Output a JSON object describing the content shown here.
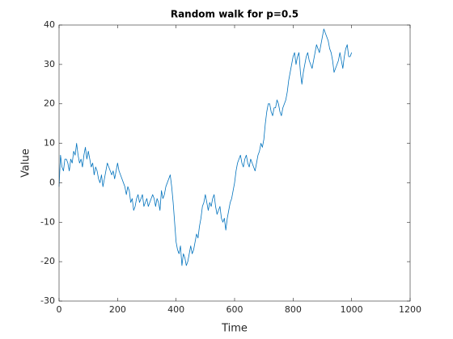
{
  "chart_data": {
    "type": "line",
    "title": "Random walk for p=0.5",
    "x_label": "Time",
    "y_label": "Value",
    "xlim": [
      0,
      1200
    ],
    "ylim": [
      -30,
      40
    ],
    "xticks": [
      0,
      200,
      400,
      600,
      800,
      1000,
      1200
    ],
    "yticks": [
      -30,
      -20,
      -10,
      0,
      10,
      20,
      30,
      40
    ],
    "grid": false,
    "series": [
      {
        "color": "#0072bd",
        "x": [
          0,
          5,
          10,
          15,
          20,
          25,
          30,
          35,
          40,
          45,
          50,
          55,
          60,
          65,
          70,
          75,
          80,
          85,
          90,
          95,
          100,
          105,
          110,
          115,
          120,
          125,
          130,
          135,
          140,
          145,
          150,
          155,
          160,
          165,
          170,
          175,
          180,
          185,
          190,
          195,
          200,
          205,
          210,
          215,
          220,
          225,
          230,
          235,
          240,
          245,
          250,
          255,
          260,
          265,
          270,
          275,
          280,
          285,
          290,
          295,
          300,
          305,
          310,
          315,
          320,
          325,
          330,
          335,
          340,
          345,
          350,
          355,
          360,
          365,
          370,
          375,
          380,
          385,
          390,
          395,
          400,
          405,
          410,
          415,
          420,
          425,
          430,
          435,
          440,
          445,
          450,
          455,
          460,
          465,
          470,
          475,
          480,
          485,
          490,
          495,
          500,
          505,
          510,
          515,
          520,
          525,
          530,
          535,
          540,
          545,
          550,
          555,
          560,
          565,
          570,
          575,
          580,
          585,
          590,
          595,
          600,
          605,
          610,
          615,
          620,
          625,
          630,
          635,
          640,
          645,
          650,
          655,
          660,
          665,
          670,
          675,
          680,
          685,
          690,
          695,
          700,
          705,
          710,
          715,
          720,
          725,
          730,
          735,
          740,
          745,
          750,
          755,
          760,
          765,
          770,
          775,
          780,
          785,
          790,
          795,
          800,
          805,
          810,
          815,
          820,
          825,
          830,
          835,
          840,
          845,
          850,
          855,
          860,
          865,
          870,
          875,
          880,
          885,
          890,
          895,
          900,
          905,
          910,
          915,
          920,
          925,
          930,
          935,
          940,
          945,
          950,
          955,
          960,
          965,
          970,
          975,
          980,
          985,
          990,
          995,
          1000
        ],
        "values": [
          -1,
          7,
          4,
          3,
          6,
          6,
          5,
          3,
          6,
          5,
          8,
          7,
          10,
          7,
          5,
          6,
          4,
          7,
          9,
          6,
          8,
          6,
          4,
          5,
          2,
          4,
          3,
          1,
          0,
          2,
          -1,
          1,
          3,
          5,
          4,
          3,
          2,
          3,
          1,
          3,
          5,
          3,
          2,
          1,
          0,
          -1,
          -3,
          -1,
          -2,
          -5,
          -4,
          -7,
          -6,
          -4,
          -3,
          -5,
          -4,
          -3,
          -6,
          -5,
          -4,
          -6,
          -5,
          -4,
          -3,
          -4,
          -6,
          -4,
          -5,
          -7,
          -2,
          -4,
          -3,
          -1,
          0,
          1,
          2,
          -1,
          -5,
          -10,
          -15,
          -17,
          -18,
          -16,
          -21,
          -18,
          -19,
          -21,
          -20,
          -18,
          -16,
          -18,
          -17,
          -15,
          -13,
          -14,
          -11,
          -9,
          -6,
          -5,
          -3,
          -5,
          -7,
          -5,
          -6,
          -4,
          -3,
          -6,
          -8,
          -7,
          -6,
          -9,
          -10,
          -9,
          -12,
          -9,
          -7,
          -5,
          -4,
          -2,
          0,
          3,
          5,
          6,
          7,
          5,
          4,
          6,
          7,
          5,
          4,
          6,
          5,
          4,
          3,
          5,
          7,
          8,
          10,
          9,
          11,
          15,
          18,
          20,
          20,
          18,
          17,
          19,
          19,
          21,
          20,
          18,
          17,
          19,
          20,
          21,
          23,
          26,
          28,
          30,
          32,
          33,
          30,
          32,
          33,
          28,
          25,
          28,
          30,
          32,
          33,
          31,
          30,
          29,
          31,
          33,
          35,
          34,
          33,
          35,
          37,
          39,
          38,
          37,
          36,
          34,
          33,
          31,
          28,
          29,
          30,
          31,
          33,
          31,
          29,
          32,
          34,
          35,
          32,
          32,
          33
        ]
      }
    ]
  }
}
